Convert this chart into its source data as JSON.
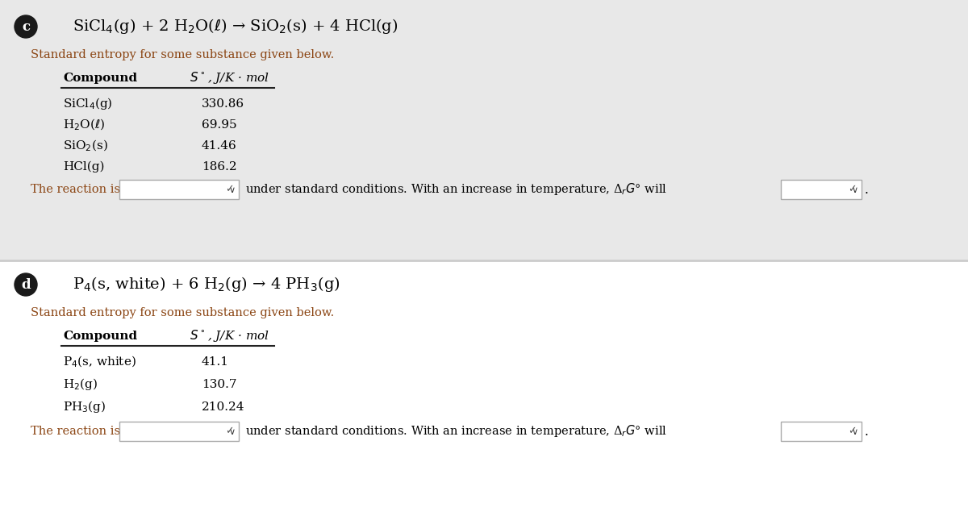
{
  "bg_top": "#e8e8e8",
  "bg_bottom": "#ffffff",
  "divider_color": "#cccccc",
  "text_color": "#000000",
  "subtitle_color": "#8b4513",
  "value_color": "#000000",
  "header_line_color": "#333333",
  "circle_color": "#1a1a1a",
  "section_c": {
    "label": "c",
    "equation": "SiCl$_4$(g) + 2 H$_2$O($\\ell$) → SiO$_2$(s) + 4 HCl(g)",
    "subtitle": "Standard entropy for some substance given below.",
    "col1_header": "Compound",
    "col2_header": "$S^\\circ$, J/K · mol",
    "compounds": [
      "SiCl$_4$(g)",
      "H$_2$O($\\ell$)",
      "SiO$_2$(s)",
      "HCl(g)"
    ],
    "values": [
      "330.86",
      "69.95",
      "41.46",
      "186.2"
    ],
    "footer": "The reaction is",
    "footer2": "under standard conditions. With an increase in temperature, Δ$_r$$G$° will"
  },
  "section_d": {
    "label": "d",
    "equation": "P$_4$(s, white) + 6 H$_2$(g) → 4 PH$_3$(g)",
    "subtitle": "Standard entropy for some substance given below.",
    "col1_header": "Compound",
    "col2_header": "$S^\\circ$, J/K · mol",
    "compounds": [
      "P$_4$(s, white)",
      "H$_2$(g)",
      "PH$_3$(g)"
    ],
    "values": [
      "41.1",
      "130.7",
      "210.24"
    ],
    "footer": "The reaction is",
    "footer2": "under standard conditions. With an increase in temperature, Δ$_r$$G$° will"
  }
}
